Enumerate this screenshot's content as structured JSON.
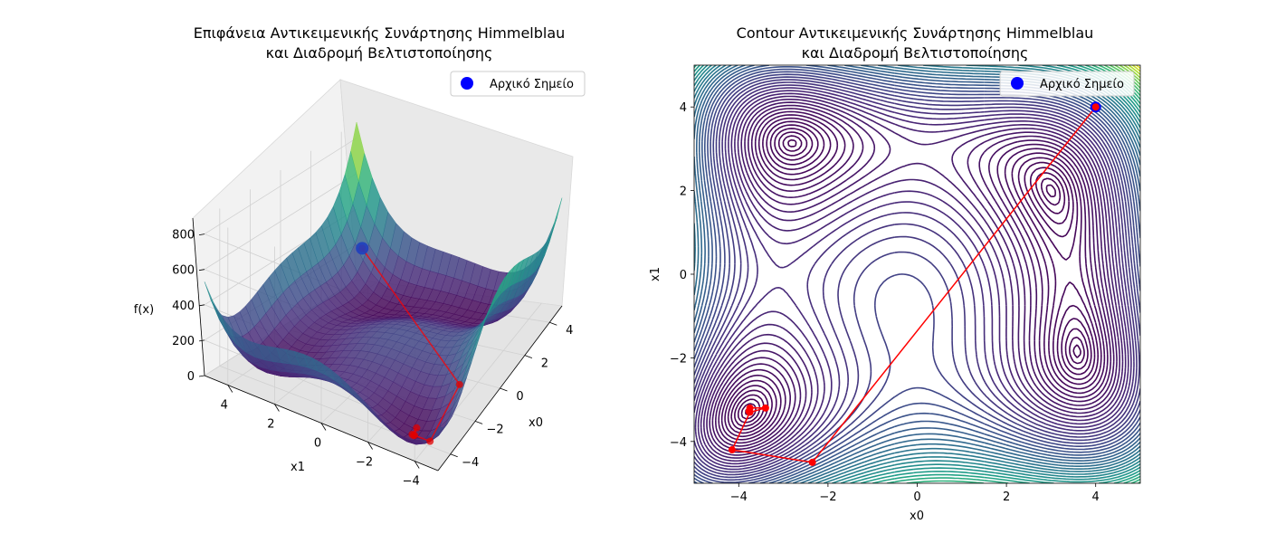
{
  "chart_data": [
    {
      "type": "surface3d",
      "title_line1": "Επιφάνεια Αντικειμενικής Συνάρτησης Himmelblau",
      "title_line2": "και Διαδρομή Βελτιστοποίησης",
      "xlabel": "x0",
      "ylabel": "x1",
      "zlabel": "f(x)",
      "xlim": [
        -5,
        5
      ],
      "ylim": [
        -5,
        5
      ],
      "zlim": [
        0,
        890
      ],
      "x_ticks": [
        -4,
        -2,
        0,
        2,
        4
      ],
      "y_ticks": [
        -4,
        -2,
        0,
        2,
        4
      ],
      "z_ticks": [
        0,
        200,
        400,
        600,
        800
      ],
      "colormap": "viridis",
      "legend": {
        "position": "upper right",
        "entries": [
          {
            "label": "Αρχικό Σημείο",
            "color": "#0000ff"
          }
        ]
      },
      "path_color": "#ff0000",
      "start_color": "#0000ff"
    },
    {
      "type": "contour",
      "title_line1": "Contour Αντικειμενικής Συνάρτησης Himmelblau",
      "title_line2": "και Διαδρομή Βελτιστοποίησης",
      "xlabel": "x0",
      "ylabel": "x1",
      "xlim": [
        -5,
        5
      ],
      "ylim": [
        -5,
        5
      ],
      "x_ticks": [
        -4,
        -2,
        0,
        2,
        4
      ],
      "y_ticks": [
        -4,
        -2,
        0,
        2,
        4
      ],
      "colormap": "viridis",
      "legend": {
        "position": "upper right",
        "entries": [
          {
            "label": "Αρχικό Σημείο",
            "color": "#0000ff"
          }
        ]
      },
      "path_color": "#ff0000"
    }
  ],
  "optimization_path": [
    {
      "x0": 4.0,
      "x1": 4.0
    },
    {
      "x0": -2.35,
      "x1": -4.5
    },
    {
      "x0": -4.15,
      "x1": -4.2
    },
    {
      "x0": -3.75,
      "x1": -3.3
    },
    {
      "x0": -3.4,
      "x1": -3.2
    },
    {
      "x0": -3.75,
      "x1": -3.2
    },
    {
      "x0": -3.77,
      "x1": -3.28
    }
  ],
  "start_point": {
    "x0": 4.0,
    "x1": 4.0
  }
}
